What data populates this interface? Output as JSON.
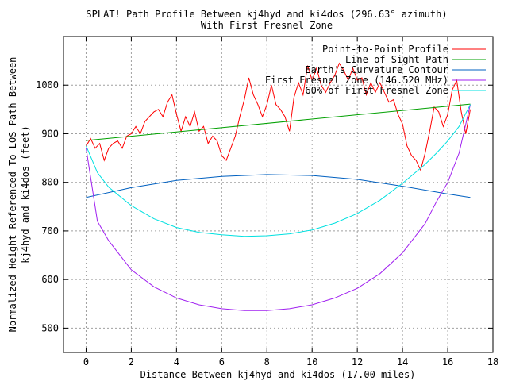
{
  "chart_data": {
    "type": "line",
    "title": "SPLAT! Path Profile Between kj4hyd and ki4dos (296.63° azimuth)",
    "subtitle": "With First Fresnel Zone",
    "xlabel": "Distance Between kj4hyd and ki4dos (17.00 miles)",
    "ylabel_line1": "Normalized Height Referenced To LOS Path Between",
    "ylabel_line2": "kj4hyd and ki4dos (feet)",
    "xlim": [
      -1,
      18
    ],
    "ylim": [
      450,
      1100
    ],
    "xticks": [
      "0",
      "2",
      "4",
      "6",
      "8",
      "10",
      "12",
      "14",
      "16",
      "18"
    ],
    "yticks": [
      "500",
      "600",
      "700",
      "800",
      "900",
      "1000"
    ],
    "grid": true,
    "legend_position": "top-right",
    "series": [
      {
        "name": "Point-to-Point Profile",
        "color": "#ff0000",
        "points": [
          [
            0,
            875
          ],
          [
            0.2,
            890
          ],
          [
            0.4,
            870
          ],
          [
            0.6,
            880
          ],
          [
            0.8,
            845
          ],
          [
            1.0,
            870
          ],
          [
            1.2,
            880
          ],
          [
            1.4,
            885
          ],
          [
            1.6,
            870
          ],
          [
            1.8,
            895
          ],
          [
            2.0,
            900
          ],
          [
            2.2,
            915
          ],
          [
            2.4,
            900
          ],
          [
            2.6,
            925
          ],
          [
            2.8,
            935
          ],
          [
            3.0,
            945
          ],
          [
            3.2,
            950
          ],
          [
            3.4,
            935
          ],
          [
            3.6,
            965
          ],
          [
            3.8,
            980
          ],
          [
            4.0,
            940
          ],
          [
            4.2,
            905
          ],
          [
            4.4,
            935
          ],
          [
            4.6,
            915
          ],
          [
            4.8,
            945
          ],
          [
            5.0,
            905
          ],
          [
            5.2,
            915
          ],
          [
            5.4,
            880
          ],
          [
            5.6,
            895
          ],
          [
            5.8,
            885
          ],
          [
            6.0,
            855
          ],
          [
            6.2,
            845
          ],
          [
            6.4,
            870
          ],
          [
            6.6,
            895
          ],
          [
            6.8,
            935
          ],
          [
            7.0,
            970
          ],
          [
            7.2,
            1015
          ],
          [
            7.4,
            980
          ],
          [
            7.6,
            960
          ],
          [
            7.8,
            935
          ],
          [
            8.0,
            960
          ],
          [
            8.2,
            1000
          ],
          [
            8.4,
            960
          ],
          [
            8.6,
            950
          ],
          [
            8.8,
            935
          ],
          [
            9.0,
            905
          ],
          [
            9.2,
            975
          ],
          [
            9.4,
            1005
          ],
          [
            9.6,
            980
          ],
          [
            9.8,
            1040
          ],
          [
            10.0,
            1010
          ],
          [
            10.2,
            1035
          ],
          [
            10.4,
            1000
          ],
          [
            10.6,
            985
          ],
          [
            10.8,
            1005
          ],
          [
            11.0,
            1020
          ],
          [
            11.2,
            1045
          ],
          [
            11.4,
            1030
          ],
          [
            11.6,
            1010
          ],
          [
            11.8,
            1035
          ],
          [
            12.0,
            1010
          ],
          [
            12.2,
            1015
          ],
          [
            12.4,
            980
          ],
          [
            12.6,
            1005
          ],
          [
            12.8,
            985
          ],
          [
            13.0,
            1005
          ],
          [
            13.2,
            985
          ],
          [
            13.4,
            965
          ],
          [
            13.6,
            970
          ],
          [
            13.8,
            940
          ],
          [
            14.0,
            920
          ],
          [
            14.2,
            875
          ],
          [
            14.4,
            855
          ],
          [
            14.6,
            845
          ],
          [
            14.8,
            825
          ],
          [
            15.0,
            860
          ],
          [
            15.2,
            905
          ],
          [
            15.4,
            955
          ],
          [
            15.6,
            945
          ],
          [
            15.8,
            915
          ],
          [
            16.0,
            940
          ],
          [
            16.2,
            990
          ],
          [
            16.4,
            1010
          ],
          [
            16.6,
            945
          ],
          [
            16.8,
            900
          ],
          [
            17.0,
            950
          ]
        ]
      },
      {
        "name": "Line of Sight Path",
        "color": "#00a000",
        "points": [
          [
            0,
            886
          ],
          [
            17,
            961
          ]
        ]
      },
      {
        "name": "Earth's Curvature Contour",
        "color": "#0060c0",
        "points": [
          [
            0,
            769
          ],
          [
            2,
            789
          ],
          [
            4,
            804
          ],
          [
            6,
            812
          ],
          [
            8,
            816
          ],
          [
            10,
            814
          ],
          [
            12,
            806
          ],
          [
            14,
            792
          ],
          [
            16,
            776
          ],
          [
            17,
            769
          ]
        ]
      },
      {
        "name": "First Fresnel Zone (146.520 MHz)",
        "color": "#a020f0",
        "points": [
          [
            0,
            870
          ],
          [
            0.5,
            720
          ],
          [
            1,
            680
          ],
          [
            2,
            620
          ],
          [
            3,
            585
          ],
          [
            4,
            562
          ],
          [
            5,
            548
          ],
          [
            6,
            540
          ],
          [
            7,
            536
          ],
          [
            8,
            536
          ],
          [
            9,
            540
          ],
          [
            10,
            548
          ],
          [
            11,
            562
          ],
          [
            12,
            582
          ],
          [
            13,
            612
          ],
          [
            14,
            655
          ],
          [
            15,
            715
          ],
          [
            15.5,
            760
          ],
          [
            16,
            800
          ],
          [
            16.5,
            860
          ],
          [
            17,
            960
          ]
        ]
      },
      {
        "name": "60% of First Fresnel Zone",
        "color": "#00e0e0",
        "points": [
          [
            0,
            875
          ],
          [
            0.5,
            820
          ],
          [
            1,
            790
          ],
          [
            2,
            752
          ],
          [
            3,
            725
          ],
          [
            4,
            707
          ],
          [
            5,
            697
          ],
          [
            6,
            692
          ],
          [
            7,
            689
          ],
          [
            8,
            690
          ],
          [
            9,
            694
          ],
          [
            10,
            702
          ],
          [
            11,
            716
          ],
          [
            12,
            736
          ],
          [
            13,
            763
          ],
          [
            14,
            798
          ],
          [
            15,
            837
          ],
          [
            15.5,
            860
          ],
          [
            16,
            885
          ],
          [
            16.5,
            915
          ],
          [
            17,
            960
          ]
        ]
      }
    ]
  }
}
